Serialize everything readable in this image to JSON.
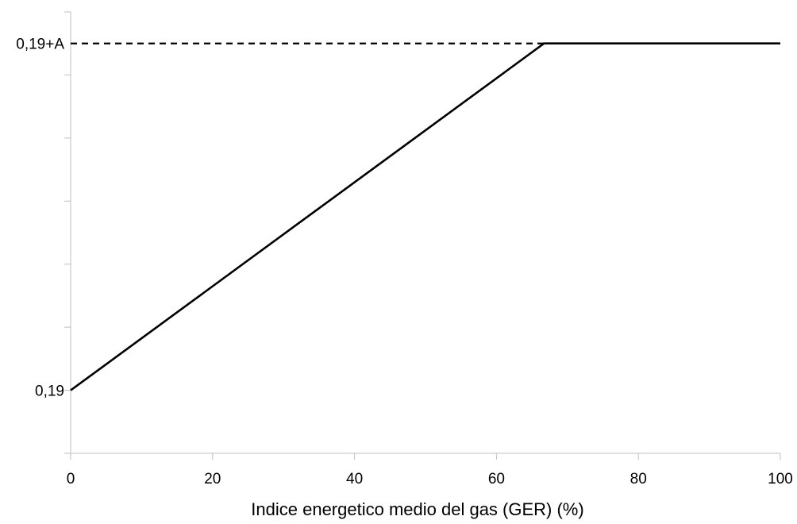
{
  "chart_data": {
    "type": "line",
    "title": "",
    "xlabel": "Indice energetico medio del gas (GER) (%)",
    "ylabel": "",
    "x_ticks": [
      "0",
      "20",
      "40",
      "60",
      "80",
      "100"
    ],
    "x_tick_values": [
      0,
      20,
      40,
      60,
      80,
      100
    ],
    "xlim": [
      0,
      100
    ],
    "ylim": [
      0,
      7
    ],
    "y_minor_tick_values": [
      0,
      1,
      2,
      3,
      4,
      5,
      6,
      7
    ],
    "y_labeled_ticks": [
      {
        "label": "0,19",
        "value": 1
      },
      {
        "label": "0,19+A",
        "value": 6.5
      }
    ],
    "grid": false,
    "legend": "none",
    "series": [
      {
        "x": [
          0,
          66.7,
          100
        ],
        "y": [
          1,
          6.5,
          6.5
        ],
        "style": "solid",
        "color": "#000000"
      }
    ],
    "reference_lines": [
      {
        "y": 6.5,
        "x_from": 0,
        "x_to": 66.7,
        "style": "dashed",
        "color": "#000000"
      }
    ]
  }
}
